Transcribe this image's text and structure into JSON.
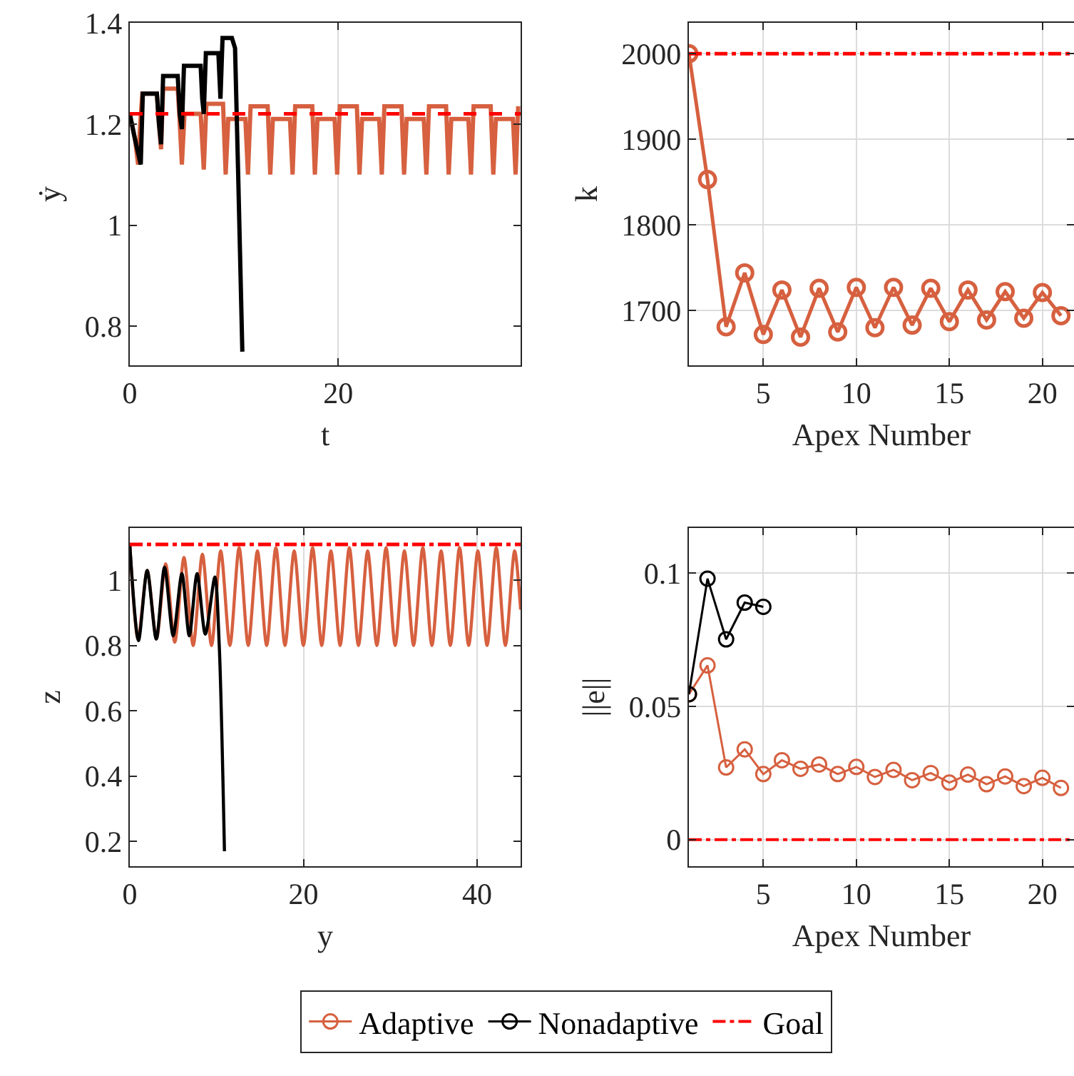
{
  "chart_data": [
    {
      "type": "line",
      "xlabel": "t",
      "ylabel": "ẏ",
      "xlim": [
        0,
        37.5
      ],
      "xticks": [
        0,
        20
      ],
      "ylim": [
        0.723,
        1.4
      ],
      "yticks": [
        0.8,
        1,
        1.2,
        1.4
      ],
      "grid": "x",
      "series": [
        {
          "color": "#d6603f",
          "x": [
            0,
            0.5,
            0.8,
            1.0,
            1.2,
            2.6,
            2.8,
            3.0,
            3.2,
            4.6,
            4.8,
            5.0,
            5.25,
            6.8,
            7.1,
            7.35,
            8.95,
            9.2,
            9.45,
            11.09,
            11.34,
            11.59,
            13.23,
            13.48,
            13.73,
            15.37,
            15.62,
            15.87,
            17.51,
            17.76,
            18.01,
            19.65,
            19.9,
            20.15,
            21.79,
            22.04,
            22.29,
            23.93,
            24.18,
            24.43,
            26.07,
            26.32,
            26.57,
            28.21,
            28.46,
            28.71,
            30.35,
            30.6,
            30.85,
            32.49,
            32.74,
            32.99,
            34.63,
            34.88,
            35.13,
            36.77,
            37.02,
            37.27
          ],
          "values": [
            1.22,
            1.17,
            1.12,
            1.2,
            1.26,
            1.26,
            1.2,
            1.15,
            1.27,
            1.27,
            1.2,
            1.12,
            1.22,
            1.22,
            1.11,
            1.24,
            1.24,
            1.1,
            1.21,
            1.21,
            1.1,
            1.235,
            1.235,
            1.1,
            1.21,
            1.21,
            1.1,
            1.235,
            1.235,
            1.1,
            1.21,
            1.21,
            1.1,
            1.235,
            1.235,
            1.1,
            1.21,
            1.21,
            1.1,
            1.235,
            1.235,
            1.1,
            1.21,
            1.21,
            1.1,
            1.235,
            1.235,
            1.1,
            1.21,
            1.21,
            1.1,
            1.235,
            1.235,
            1.1,
            1.21,
            1.21,
            1.1,
            1.235
          ]
        },
        {
          "color": "#000000",
          "x": [
            0,
            0.5,
            1.05,
            1.25,
            2.6,
            2.8,
            3.0,
            3.2,
            4.6,
            4.8,
            5.0,
            5.2,
            6.8,
            6.95,
            7.1,
            7.3,
            8.5,
            8.7,
            8.9,
            9.8,
            10.1,
            10.4,
            10.8
          ],
          "values": [
            1.22,
            1.17,
            1.12,
            1.26,
            1.26,
            1.2,
            1.16,
            1.295,
            1.295,
            1.22,
            1.19,
            1.315,
            1.315,
            1.25,
            1.22,
            1.34,
            1.34,
            1.25,
            1.37,
            1.37,
            1.35,
            1.1,
            0.75
          ]
        }
      ],
      "ref_lines": [
        {
          "axis": "y",
          "value": 1.22,
          "color": "#ff0000",
          "line_style": "dashed"
        }
      ]
    },
    {
      "type": "line",
      "xlabel": "Apex Number",
      "ylabel": "k",
      "xlim": [
        1,
        21.7
      ],
      "xticks": [
        5,
        10,
        15,
        20
      ],
      "ylim": [
        1636,
        2036
      ],
      "yticks": [
        1700,
        1800,
        1900,
        2000
      ],
      "grid": true,
      "marker": "circle",
      "series": [
        {
          "color": "#d6603f",
          "x": [
            1,
            2,
            3,
            4,
            5,
            6,
            7,
            8,
            9,
            10,
            11,
            12,
            13,
            14,
            15,
            16,
            17,
            18,
            19,
            20,
            21
          ],
          "values": [
            2000,
            1853,
            1681,
            1744,
            1672,
            1724,
            1669,
            1726,
            1675,
            1727,
            1680,
            1727,
            1683,
            1726,
            1687,
            1724,
            1689,
            1722,
            1691,
            1721,
            1694
          ]
        }
      ],
      "ref_lines": [
        {
          "axis": "y",
          "value": 2000,
          "color": "#ff0000",
          "line_style": "dashdot"
        }
      ]
    },
    {
      "type": "line",
      "xlabel": "y",
      "ylabel": "z",
      "xlim": [
        0,
        45
      ],
      "xticks": [
        0,
        20,
        40
      ],
      "ylim": [
        0.124,
        1.16
      ],
      "yticks": [
        0.2,
        0.4,
        0.6,
        0.8,
        1
      ],
      "grid": "x",
      "series": [
        {
          "color": "#d6603f",
          "x": [
            0,
            0.95,
            2.01,
            3.07,
            4.13,
            5.18,
            6.24,
            7.3,
            8.36,
            9.41,
            10.47,
            11.53,
            12.59,
            13.64,
            14.7,
            15.76,
            16.82,
            17.87,
            18.93,
            19.99,
            21.05,
            22.1,
            23.16,
            24.22,
            25.28,
            26.33,
            27.39,
            28.45,
            29.51,
            30.56,
            31.62,
            32.68,
            33.74,
            34.79,
            35.85,
            36.91,
            37.97,
            39.02,
            40.08,
            41.14,
            42.2,
            43.25,
            44.31,
            45
          ],
          "values": [
            1.11,
            0.82,
            1.03,
            0.82,
            1.05,
            0.81,
            1.07,
            0.8,
            1.08,
            0.8,
            1.09,
            0.8,
            1.1,
            0.8,
            1.09,
            0.8,
            1.1,
            0.8,
            1.09,
            0.8,
            1.1,
            0.8,
            1.09,
            0.8,
            1.1,
            0.8,
            1.09,
            0.8,
            1.1,
            0.8,
            1.09,
            0.8,
            1.1,
            0.8,
            1.09,
            0.8,
            1.1,
            0.8,
            1.09,
            0.8,
            1.1,
            0.8,
            1.09,
            0.91
          ]
        },
        {
          "color": "#000000",
          "x": [
            0,
            1.0,
            2.0,
            3.05,
            4.0,
            5.0,
            6.0,
            6.85,
            7.75,
            8.7,
            9.8,
            10.3,
            10.9
          ],
          "values": [
            1.11,
            0.815,
            1.03,
            0.82,
            1.04,
            0.83,
            1.02,
            0.83,
            1.02,
            0.835,
            1.01,
            0.8,
            0.17
          ]
        }
      ],
      "ref_lines": [
        {
          "axis": "y",
          "value": 1.11,
          "color": "#ff0000",
          "line_style": "dashdot"
        }
      ]
    },
    {
      "type": "line",
      "xlabel": "Apex Number",
      "ylabel": "||e||",
      "xlim": [
        1,
        21.7
      ],
      "xticks": [
        5,
        10,
        15,
        20
      ],
      "ylim": [
        -0.01,
        0.117
      ],
      "yticks": [
        0,
        0.05,
        0.1
      ],
      "grid": true,
      "marker": "circle",
      "legend": "bottom",
      "series": [
        {
          "name": "Adaptive",
          "color": "#d6603f",
          "x": [
            1,
            2,
            3,
            4,
            5,
            6,
            7,
            8,
            9,
            10,
            11,
            12,
            13,
            14,
            15,
            16,
            17,
            18,
            19,
            20,
            21
          ],
          "values": [
            0.0546,
            0.0654,
            0.0271,
            0.0339,
            0.0246,
            0.0298,
            0.0266,
            0.0282,
            0.0246,
            0.0273,
            0.0235,
            0.0262,
            0.0223,
            0.025,
            0.0214,
            0.0244,
            0.0208,
            0.0237,
            0.0201,
            0.0232,
            0.0194
          ]
        },
        {
          "name": "Nonadaptive",
          "color": "#000000",
          "x": [
            1,
            2,
            3,
            4,
            5
          ],
          "values": [
            0.0546,
            0.098,
            0.0752,
            0.089,
            0.0874
          ]
        }
      ],
      "ref_lines": [
        {
          "axis": "y",
          "value": 0,
          "label": "Goal",
          "color": "#ff0000",
          "line_style": "dashdot"
        }
      ]
    }
  ]
}
